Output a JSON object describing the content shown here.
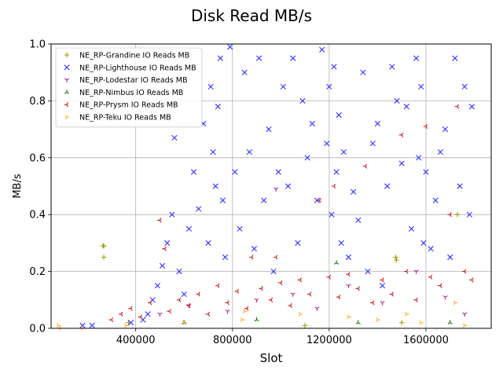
{
  "chart_data": {
    "type": "scatter",
    "title": "Disk Read MB/s",
    "xlabel": "Slot",
    "ylabel": "MB/s",
    "xlim": [
      50000,
      1870000
    ],
    "ylim": [
      0,
      1.0
    ],
    "xticks": [
      400000,
      800000,
      1200000,
      1600000
    ],
    "xtick_labels": [
      "400000",
      "800000",
      "1200000",
      "1600000"
    ],
    "yticks": [
      0.0,
      0.2,
      0.4,
      0.6,
      0.8,
      1.0
    ],
    "ytick_labels": [
      "0.0",
      "0.2",
      "0.4",
      "0.6",
      "0.8",
      "1.0"
    ],
    "grid": true,
    "legend_position": "top-left",
    "series": [
      {
        "name": "NE_RP-Grandine IO Reads MB",
        "color": "#9a9a00",
        "marker": "plus",
        "points": [
          [
            265000,
            0.29
          ],
          [
            268000,
            0.29
          ],
          [
            268000,
            0.25
          ],
          [
            370000,
            0.02
          ],
          [
            1475000,
            0.25
          ],
          [
            1478000,
            0.24
          ],
          [
            1730000,
            0.4
          ],
          [
            1500000,
            0.02
          ],
          [
            1100000,
            0.01
          ]
        ]
      },
      {
        "name": "NE_RP-Lighthouse IO Reads MB",
        "color": "#3333ff",
        "marker": "x",
        "points": [
          [
            180000,
            0.01
          ],
          [
            220000,
            0.01
          ],
          [
            380000,
            0.02
          ],
          [
            430000,
            0.03
          ],
          [
            450000,
            0.05
          ],
          [
            470000,
            0.1
          ],
          [
            490000,
            0.15
          ],
          [
            510000,
            0.22
          ],
          [
            530000,
            0.3
          ],
          [
            550000,
            0.4
          ],
          [
            560000,
            0.67
          ],
          [
            580000,
            0.2
          ],
          [
            600000,
            0.12
          ],
          [
            620000,
            0.35
          ],
          [
            640000,
            0.55
          ],
          [
            660000,
            0.42
          ],
          [
            680000,
            0.72
          ],
          [
            700000,
            0.3
          ],
          [
            710000,
            0.85
          ],
          [
            720000,
            0.62
          ],
          [
            730000,
            0.5
          ],
          [
            740000,
            0.78
          ],
          [
            750000,
            0.95
          ],
          [
            760000,
            0.45
          ],
          [
            770000,
            0.25
          ],
          [
            790000,
            0.99
          ],
          [
            810000,
            0.55
          ],
          [
            830000,
            0.35
          ],
          [
            850000,
            0.9
          ],
          [
            870000,
            0.62
          ],
          [
            890000,
            0.28
          ],
          [
            910000,
            0.95
          ],
          [
            930000,
            0.45
          ],
          [
            950000,
            0.7
          ],
          [
            970000,
            0.2
          ],
          [
            990000,
            0.55
          ],
          [
            1010000,
            0.85
          ],
          [
            1030000,
            0.5
          ],
          [
            1050000,
            0.95
          ],
          [
            1070000,
            0.3
          ],
          [
            1090000,
            0.8
          ],
          [
            1110000,
            0.6
          ],
          [
            1130000,
            0.72
          ],
          [
            1150000,
            0.45
          ],
          [
            1170000,
            0.98
          ],
          [
            1190000,
            0.65
          ],
          [
            1200000,
            0.85
          ],
          [
            1210000,
            0.4
          ],
          [
            1220000,
            0.92
          ],
          [
            1230000,
            0.55
          ],
          [
            1240000,
            0.75
          ],
          [
            1250000,
            0.3
          ],
          [
            1260000,
            0.62
          ],
          [
            1280000,
            0.25
          ],
          [
            1300000,
            0.48
          ],
          [
            1320000,
            0.38
          ],
          [
            1340000,
            0.9
          ],
          [
            1360000,
            0.2
          ],
          [
            1380000,
            0.65
          ],
          [
            1400000,
            0.72
          ],
          [
            1420000,
            0.15
          ],
          [
            1440000,
            0.5
          ],
          [
            1460000,
            0.92
          ],
          [
            1480000,
            0.8
          ],
          [
            1500000,
            0.58
          ],
          [
            1520000,
            0.78
          ],
          [
            1540000,
            0.35
          ],
          [
            1560000,
            0.95
          ],
          [
            1570000,
            0.6
          ],
          [
            1580000,
            0.85
          ],
          [
            1590000,
            0.3
          ],
          [
            1600000,
            0.55
          ],
          [
            1620000,
            0.28
          ],
          [
            1640000,
            0.45
          ],
          [
            1660000,
            0.62
          ],
          [
            1680000,
            0.7
          ],
          [
            1700000,
            0.25
          ],
          [
            1720000,
            0.95
          ],
          [
            1740000,
            0.5
          ],
          [
            1760000,
            0.85
          ],
          [
            1780000,
            0.4
          ],
          [
            1790000,
            0.78
          ]
        ]
      },
      {
        "name": "NE_RP-Lodestar IO Reads MB",
        "color": "#aa2288",
        "marker": "tri_down",
        "points": [
          [
            500000,
            0.05
          ],
          [
            620000,
            0.08
          ],
          [
            780000,
            0.06
          ],
          [
            900000,
            0.1
          ],
          [
            980000,
            0.49
          ],
          [
            1050000,
            0.12
          ],
          [
            1150000,
            0.07
          ],
          [
            1280000,
            0.15
          ],
          [
            1420000,
            0.09
          ],
          [
            1560000,
            0.2
          ],
          [
            1680000,
            0.11
          ],
          [
            1760000,
            0.05
          ]
        ]
      },
      {
        "name": "NE_RP-Nimbus IO Reads MB",
        "color": "#117711",
        "marker": "tri_up",
        "points": [
          [
            600000,
            0.02
          ],
          [
            900000,
            0.03
          ],
          [
            1230000,
            0.23
          ],
          [
            1320000,
            0.02
          ],
          [
            1700000,
            0.02
          ]
        ]
      },
      {
        "name": "NE_RP-Prysm IO Reads MB",
        "color": "#cc1111",
        "marker": "tri_left",
        "points": [
          [
            300000,
            0.03
          ],
          [
            340000,
            0.05
          ],
          [
            380000,
            0.07
          ],
          [
            420000,
            0.04
          ],
          [
            460000,
            0.09
          ],
          [
            500000,
            0.38
          ],
          [
            520000,
            0.28
          ],
          [
            540000,
            0.06
          ],
          [
            580000,
            0.1
          ],
          [
            620000,
            0.08
          ],
          [
            660000,
            0.12
          ],
          [
            700000,
            0.05
          ],
          [
            740000,
            0.15
          ],
          [
            780000,
            0.09
          ],
          [
            820000,
            0.13
          ],
          [
            860000,
            0.07
          ],
          [
            880000,
            0.25
          ],
          [
            920000,
            0.14
          ],
          [
            960000,
            0.1
          ],
          [
            980000,
            0.25
          ],
          [
            1000000,
            0.16
          ],
          [
            1040000,
            0.08
          ],
          [
            1080000,
            0.17
          ],
          [
            1120000,
            0.12
          ],
          [
            1160000,
            0.45
          ],
          [
            1200000,
            0.18
          ],
          [
            1220000,
            0.5
          ],
          [
            1240000,
            0.11
          ],
          [
            1280000,
            0.19
          ],
          [
            1320000,
            0.14
          ],
          [
            1350000,
            0.57
          ],
          [
            1380000,
            0.09
          ],
          [
            1420000,
            0.17
          ],
          [
            1460000,
            0.12
          ],
          [
            1500000,
            0.68
          ],
          [
            1520000,
            0.2
          ],
          [
            1560000,
            0.1
          ],
          [
            1600000,
            0.71
          ],
          [
            1620000,
            0.18
          ],
          [
            1660000,
            0.15
          ],
          [
            1700000,
            0.4
          ],
          [
            1730000,
            0.78
          ],
          [
            1760000,
            0.2
          ],
          [
            1790000,
            0.17
          ]
        ]
      },
      {
        "name": "NE_RP-Teku IO Reads MB",
        "color": "#ffaa22",
        "marker": "tri_right",
        "points": [
          [
            80000,
            0.01
          ],
          [
            90000,
            0.0
          ],
          [
            180000,
            0.0
          ],
          [
            360000,
            0.01
          ],
          [
            600000,
            0.02
          ],
          [
            840000,
            0.03
          ],
          [
            850000,
            0.06
          ],
          [
            1080000,
            0.05
          ],
          [
            1280000,
            0.04
          ],
          [
            1400000,
            0.03
          ],
          [
            1520000,
            0.05
          ],
          [
            1580000,
            0.02
          ],
          [
            1720000,
            0.09
          ],
          [
            1760000,
            0.01
          ]
        ]
      }
    ]
  }
}
